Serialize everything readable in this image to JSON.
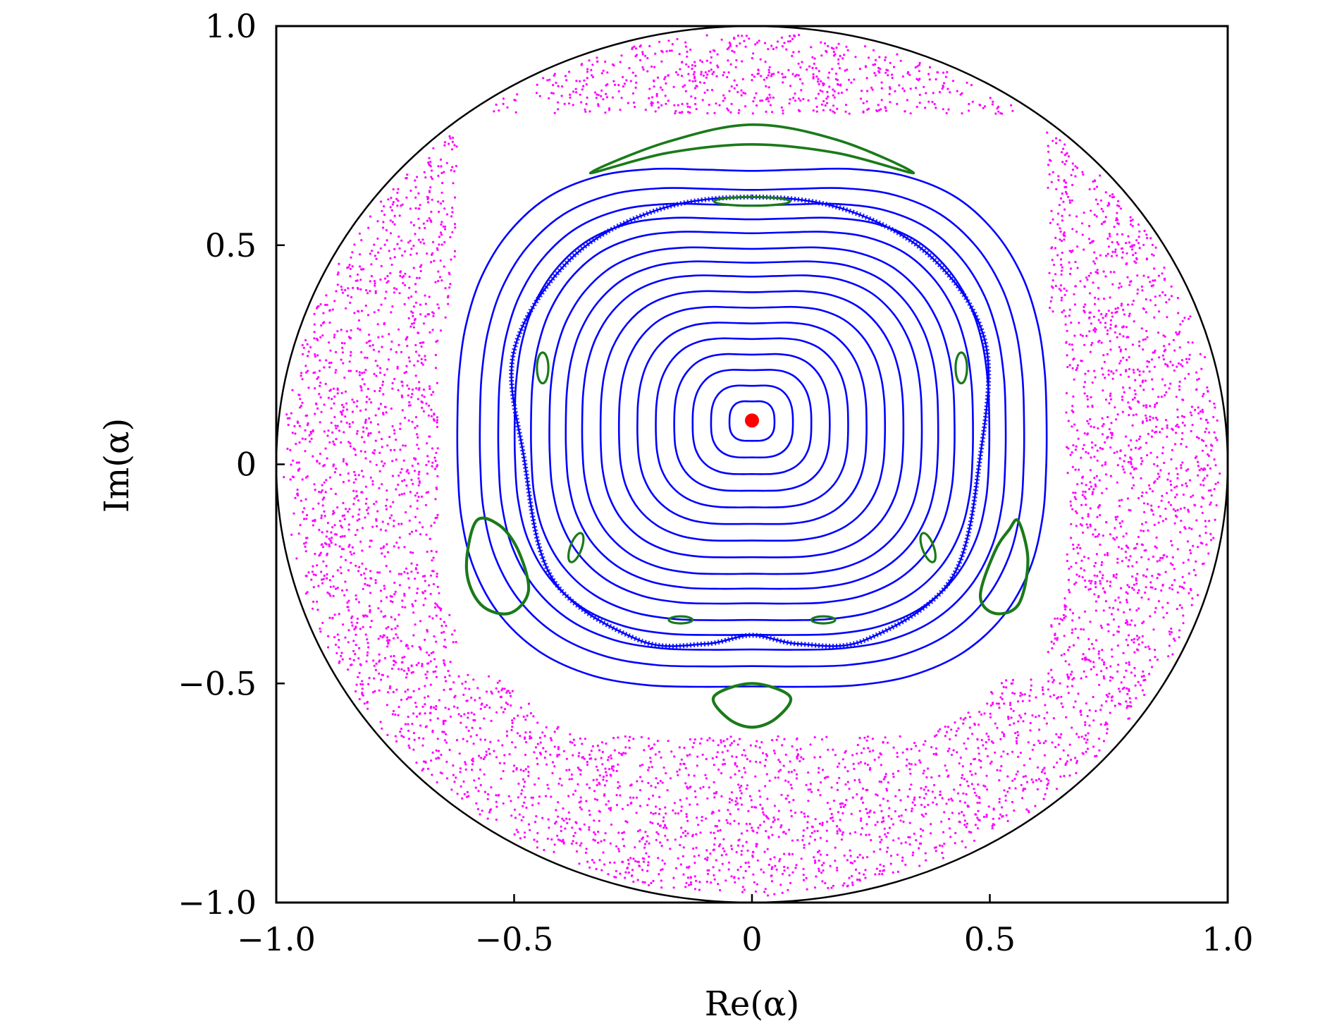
{
  "chart_data": {
    "type": "scatter",
    "title": "",
    "xlabel": "Re(α)",
    "ylabel": "Im(α)",
    "xlim": [
      -1.0,
      1.0
    ],
    "ylim": [
      -1.0,
      1.0
    ],
    "grid": false,
    "legend": "none",
    "x_ticks": [
      {
        "value": -1.0,
        "label": "−1.0"
      },
      {
        "value": -0.5,
        "label": "−0.5"
      },
      {
        "value": 0,
        "label": "0"
      },
      {
        "value": 0.5,
        "label": "0.5"
      },
      {
        "value": 1.0,
        "label": "1.0"
      }
    ],
    "y_ticks": [
      {
        "value": -1.0,
        "label": "−1.0"
      },
      {
        "value": -0.5,
        "label": "−0.5"
      },
      {
        "value": 0,
        "label": "0"
      },
      {
        "value": 0.5,
        "label": "0.5"
      },
      {
        "value": 1.0,
        "label": "1.0"
      }
    ],
    "unit_circle": {
      "center": [
        0,
        0
      ],
      "radius": 1.0,
      "color": "#000000"
    },
    "fixed_point": {
      "x": 0.0,
      "y": 0.1,
      "color": "#ff0000"
    },
    "regular_orbits": {
      "color": "#0000ff",
      "center": [
        0.0,
        0.1
      ],
      "scales": [
        0.055,
        0.1,
        0.145,
        0.19,
        0.235,
        0.28,
        0.325,
        0.37,
        0.415,
        0.455,
        0.495,
        0.54,
        0.58,
        0.62,
        0.665,
        0.72
      ],
      "shape": [
        {
          "angle_deg": 0,
          "r": 1.0
        },
        {
          "angle_deg": 45,
          "r": 1.08
        },
        {
          "angle_deg": 90,
          "r": 0.92
        },
        {
          "angle_deg": 135,
          "r": 1.08
        },
        {
          "angle_deg": 180,
          "r": 1.0
        },
        {
          "angle_deg": 225,
          "r": 1.12
        },
        {
          "angle_deg": 270,
          "r": 0.98
        },
        {
          "angle_deg": 315,
          "r": 1.12
        }
      ]
    },
    "separatrix_layer": {
      "color": "#0000ff",
      "vertices": [
        [
          0.0,
          0.61
        ],
        [
          0.2,
          0.58
        ],
        [
          0.38,
          0.47
        ],
        [
          0.49,
          0.28
        ],
        [
          0.48,
          0.02
        ],
        [
          0.42,
          -0.26
        ],
        [
          0.24,
          -0.4
        ],
        [
          0.1,
          -0.41
        ],
        [
          0.0,
          -0.39
        ],
        [
          -0.1,
          -0.41
        ],
        [
          -0.24,
          -0.4
        ],
        [
          -0.42,
          -0.26
        ],
        [
          -0.48,
          0.02
        ],
        [
          -0.5,
          0.26
        ],
        [
          -0.38,
          0.47
        ],
        [
          -0.2,
          0.58
        ]
      ]
    },
    "islands": {
      "color": "#1a7a1a",
      "items": [
        {
          "type": "crescent",
          "vertices": [
            [
              -0.34,
              0.665
            ],
            [
              -0.18,
              0.735
            ],
            [
              0.0,
              0.775
            ],
            [
              0.18,
              0.74
            ],
            [
              0.34,
              0.665
            ],
            [
              0.18,
              0.71
            ],
            [
              0.0,
              0.73
            ],
            [
              -0.18,
              0.71
            ]
          ]
        },
        {
          "type": "ellipse",
          "cx": 0.0,
          "cy": 0.6,
          "rx": 0.08,
          "ry": 0.01,
          "rot_deg": 0
        },
        {
          "type": "ellipse",
          "cx": -0.44,
          "cy": 0.22,
          "rx": 0.012,
          "ry": 0.035,
          "rot_deg": 0
        },
        {
          "type": "ellipse",
          "cx": 0.44,
          "cy": 0.22,
          "rx": 0.012,
          "ry": 0.035,
          "rot_deg": 0
        },
        {
          "type": "ellipse",
          "cx": -0.37,
          "cy": -0.19,
          "rx": 0.012,
          "ry": 0.035,
          "rot_deg": -20
        },
        {
          "type": "ellipse",
          "cx": 0.37,
          "cy": -0.19,
          "rx": 0.012,
          "ry": 0.035,
          "rot_deg": 20
        },
        {
          "type": "ellipse",
          "cx": -0.15,
          "cy": -0.355,
          "rx": 0.025,
          "ry": 0.008,
          "rot_deg": 0
        },
        {
          "type": "ellipse",
          "cx": 0.15,
          "cy": -0.355,
          "rx": 0.025,
          "ry": 0.008,
          "rot_deg": 0
        },
        {
          "type": "blob",
          "vertices": [
            [
              -0.58,
              -0.13
            ],
            [
              -0.53,
              -0.14
            ],
            [
              -0.49,
              -0.2
            ],
            [
              -0.47,
              -0.29
            ],
            [
              -0.51,
              -0.34
            ],
            [
              -0.57,
              -0.32
            ],
            [
              -0.6,
              -0.24
            ]
          ]
        },
        {
          "type": "blob",
          "vertices": [
            [
              0.56,
              -0.13
            ],
            [
              0.54,
              -0.15
            ],
            [
              0.51,
              -0.2
            ],
            [
              0.48,
              -0.3
            ],
            [
              0.51,
              -0.34
            ],
            [
              0.56,
              -0.32
            ],
            [
              0.58,
              -0.22
            ]
          ]
        },
        {
          "type": "blob",
          "vertices": [
            [
              -0.08,
              -0.53
            ],
            [
              0.0,
              -0.5
            ],
            [
              0.08,
              -0.53
            ],
            [
              0.05,
              -0.58
            ],
            [
              0.0,
              -0.6
            ],
            [
              -0.05,
              -0.58
            ]
          ]
        }
      ]
    },
    "chaotic_sea": {
      "color": "#ff00ff",
      "r_min": 0.6,
      "r_max": 0.985,
      "point_count": 5200
    }
  }
}
